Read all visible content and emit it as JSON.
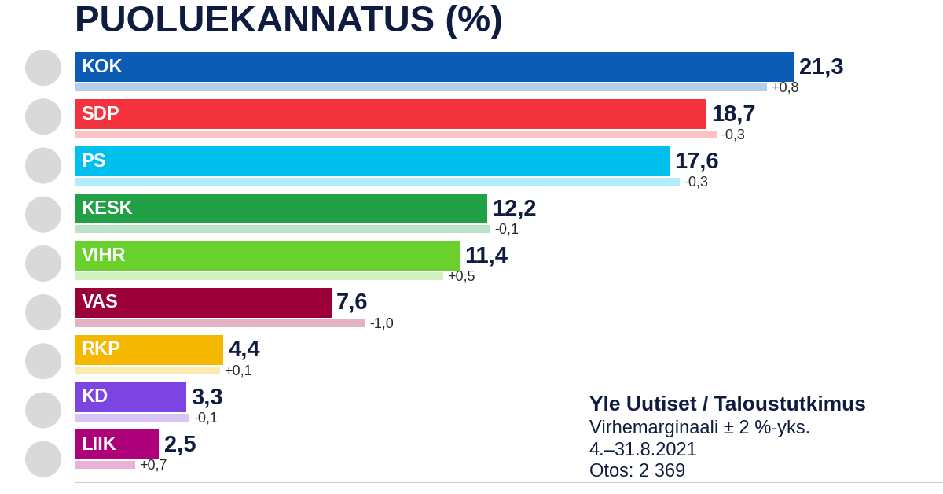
{
  "chart_data": {
    "type": "bar",
    "orientation": "horizontal",
    "title": "PUOLUEKANNATUS (%)",
    "categories": [
      "KOK",
      "SDP",
      "PS",
      "KESK",
      "VIHR",
      "VAS",
      "RKP",
      "KD",
      "LIIK"
    ],
    "values": [
      21.3,
      18.7,
      17.6,
      12.2,
      11.4,
      7.6,
      4.4,
      3.3,
      2.5
    ],
    "value_labels": [
      "21,3",
      "18,7",
      "17,6",
      "12,2",
      "11,4",
      "7,6",
      "4,4",
      "3,3",
      "2,5"
    ],
    "changes": [
      0.8,
      -0.3,
      -0.3,
      -0.1,
      0.5,
      -1.0,
      0.1,
      -0.1,
      0.7
    ],
    "change_labels": [
      "+0,8",
      "-0,3",
      "-0,3",
      "-0,1",
      "+0,5",
      "-1,0",
      "+0,1",
      "-0,1",
      "+0,7"
    ],
    "colors": [
      "#0a5cb4",
      "#f5333f",
      "#00c0ee",
      "#22a045",
      "#6ad12c",
      "#9c0039",
      "#f5b800",
      "#7c44e0",
      "#ad0079"
    ],
    "xlim": [
      0,
      25.7
    ],
    "xticks": [],
    "tick_labels": false,
    "grid": false,
    "data_labels": true,
    "annotations": [
      "Yle Uutiset / Taloustutkimus",
      "Virhemarginaali ± 2 %-yks.",
      "4.–31.8.2021",
      "Otos: 2 369"
    ]
  }
}
